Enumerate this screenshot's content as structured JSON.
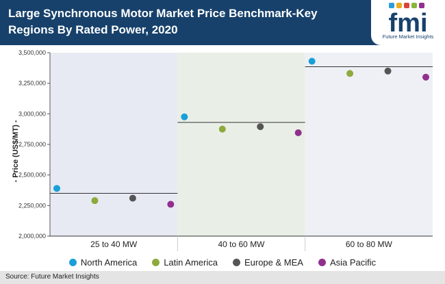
{
  "header": {
    "title": "Large Synchronous Motor Market Price Benchmark-Key Regions By Rated Power, 2020"
  },
  "logo": {
    "text": "fmi",
    "tagline": "Future Market Insights"
  },
  "chart_data": {
    "type": "scatter",
    "title": "Large Synchronous Motor Market Price Benchmark-Key Regions By Rated Power, 2020",
    "ylabel": "- Price (US$/MT) -",
    "xlabel": "",
    "ylim": [
      2000000,
      3500000
    ],
    "yticks": [
      2000000,
      2250000,
      2500000,
      2750000,
      3000000,
      3250000,
      3500000
    ],
    "ytick_labels": [
      "2,000,000",
      "2,250,000",
      "2,500,000",
      "2,750,000",
      "3,000,000",
      "3,250,000",
      "3,500,000"
    ],
    "categories": [
      "25 to 40 MW",
      "40 to 60 MW",
      "60 to 80 MW"
    ],
    "series": [
      {
        "name": "North America",
        "color": "#1a9fd9",
        "values": [
          2390000,
          2975000,
          3430000
        ]
      },
      {
        "name": "Latin America",
        "color": "#8daa3c",
        "values": [
          2290000,
          2875000,
          3330000
        ]
      },
      {
        "name": "Europe & MEA",
        "color": "#555555",
        "values": [
          2310000,
          2895000,
          3350000
        ]
      },
      {
        "name": "Asia Pacific",
        "color": "#912f8e",
        "values": [
          2260000,
          2845000,
          3300000
        ]
      }
    ],
    "benchmark_lines": [
      2350000,
      2930000,
      3385000
    ],
    "panel_colors": [
      "#e7eaf3",
      "#e9efe6",
      "#eef0f5"
    ],
    "legend_position": "bottom",
    "grid": false
  },
  "footer": {
    "source": "Source: Future Market Insights"
  }
}
